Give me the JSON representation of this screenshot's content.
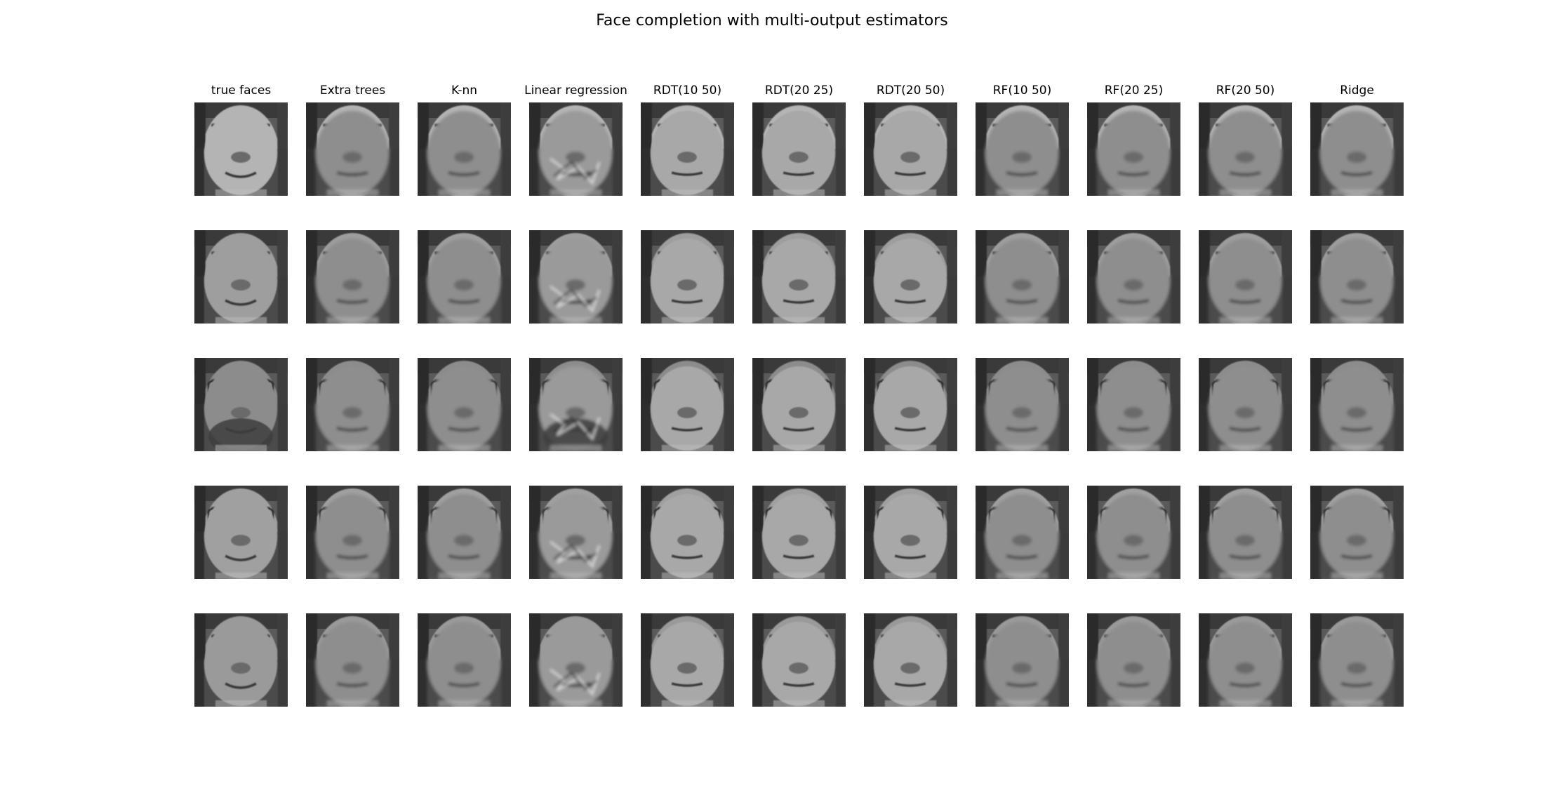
{
  "figure": {
    "title": "Face completion with multi-output estimators",
    "columns": [
      {
        "id": "true-faces",
        "label": "true faces"
      },
      {
        "id": "extra-trees",
        "label": "Extra trees"
      },
      {
        "id": "k-nn",
        "label": "K-nn"
      },
      {
        "id": "linear-regression",
        "label": "Linear regression"
      },
      {
        "id": "rdt-10-50",
        "label": "RDT(10 50)"
      },
      {
        "id": "rdt-20-25",
        "label": "RDT(20 25)"
      },
      {
        "id": "rdt-20-50",
        "label": "RDT(20 50)"
      },
      {
        "id": "rf-10-50",
        "label": "RF(10 50)"
      },
      {
        "id": "rf-20-25",
        "label": "RF(20 25)"
      },
      {
        "id": "rf-20-50",
        "label": "RF(20 50)"
      },
      {
        "id": "ridge",
        "label": "Ridge"
      }
    ],
    "rows": [
      {
        "glasses": false,
        "beard": false,
        "top_tone": "#b4b4b4"
      },
      {
        "glasses": false,
        "beard": false,
        "top_tone": "#9e9e9e"
      },
      {
        "glasses": true,
        "beard": true,
        "top_tone": "#8c8c8c"
      },
      {
        "glasses": true,
        "beard": false,
        "top_tone": "#a0a0a0"
      },
      {
        "glasses": false,
        "beard": false,
        "top_tone": "#9a9a9a"
      }
    ],
    "colors": {
      "background": "#ffffff",
      "grayscale_dark": "#202020",
      "grayscale_light": "#e6e6e6"
    },
    "icons": [
      "grayscale-face-thumbnail"
    ]
  }
}
